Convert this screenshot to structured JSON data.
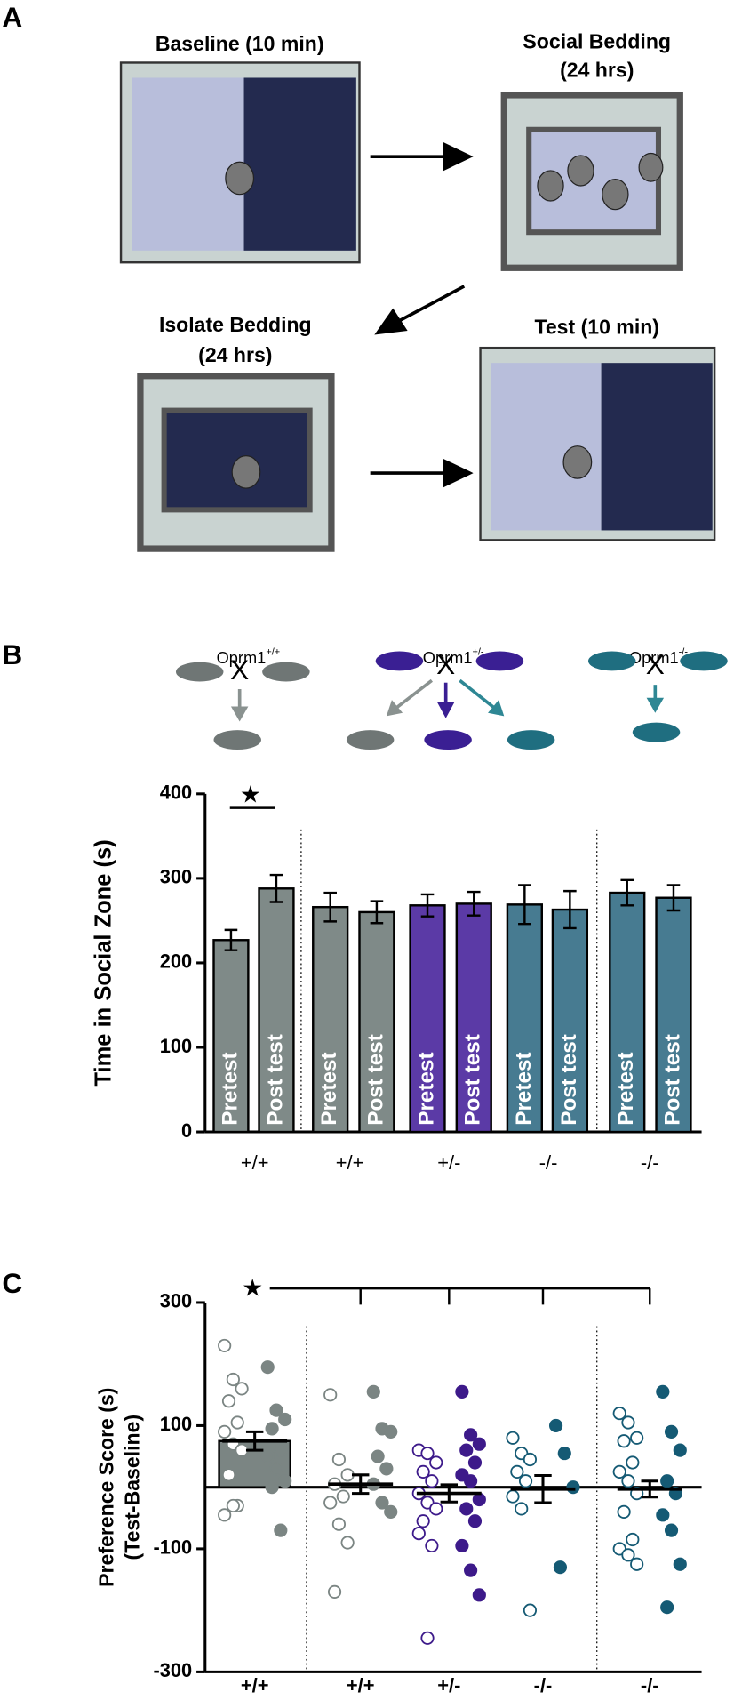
{
  "panels": [
    "A",
    "B",
    "C"
  ],
  "diagram": {
    "baseline": "Baseline (10 min)",
    "social": [
      "Social Bedding",
      "(24 hrs)"
    ],
    "isolate": [
      "Isolate Bedding",
      "(24 hrs)"
    ],
    "test": "Test (10 min)",
    "crosses": [
      {
        "name": "Oprm1",
        "sup": "+/+"
      },
      {
        "name": "Oprm1",
        "sup": "+/-"
      },
      {
        "name": "Oprm1",
        "sup": "-/-"
      }
    ],
    "cross_mark": "X"
  },
  "chart_data": [
    {
      "type": "bar",
      "ylabel": "Time in Social Zone (s)",
      "ylim": [
        0,
        400
      ],
      "yticks": [
        0,
        100,
        200,
        300,
        400
      ],
      "bar_labels": [
        "Pretest",
        "Post test",
        "Pretest",
        "Post test",
        "Pretest",
        "Post test",
        "Pretest",
        "Post test",
        "Pretest",
        "Post test"
      ],
      "groups": [
        "+/+",
        "+/+",
        "+/-",
        "-/-",
        "-/-"
      ],
      "values": [
        227,
        288,
        266,
        260,
        268,
        270,
        269,
        263,
        283,
        277
      ],
      "errors": [
        12,
        16,
        17,
        13,
        13,
        14,
        23,
        22,
        15,
        15
      ],
      "colors": [
        "#7f8a88",
        "#7f8a88",
        "#7f8a88",
        "#7f8a88",
        "#5b3aa6",
        "#5b3aa6",
        "#477b91",
        "#477b91",
        "#477b91",
        "#477b91"
      ],
      "annotation": "★"
    },
    {
      "type": "dot",
      "ylabel": [
        "Preference Score (s)",
        "(Test-Baseline)"
      ],
      "ylim": [
        -300,
        300
      ],
      "yticks": [
        -300,
        -100,
        100,
        300
      ],
      "categories": [
        "+/+",
        "+/+",
        "+/-",
        "-/-",
        "-/-"
      ],
      "colors": [
        "#7b8583",
        "#7b8583",
        "#3d1a8a",
        "#155a74",
        "#155a74"
      ],
      "open_values": [
        [
          230,
          175,
          160,
          140,
          105,
          90,
          70,
          60,
          20,
          -30,
          -45,
          -30
        ],
        [
          150,
          45,
          20,
          5,
          -15,
          -25,
          -60,
          -90,
          -170
        ],
        [
          60,
          55,
          40,
          25,
          10,
          -10,
          -25,
          -35,
          -55,
          -95,
          -75,
          -245
        ],
        [
          80,
          55,
          45,
          25,
          10,
          -15,
          -35,
          -200
        ],
        [
          120,
          105,
          80,
          75,
          40,
          25,
          10,
          -10,
          -40,
          -85,
          -100,
          -110,
          -125
        ]
      ],
      "filled_values": [
        [
          195,
          125,
          110,
          95,
          60,
          50,
          30,
          10,
          0,
          -70
        ],
        [
          155,
          95,
          90,
          50,
          30,
          5,
          -25,
          -40
        ],
        [
          155,
          85,
          70,
          60,
          40,
          20,
          10,
          -20,
          -35,
          -55,
          -95,
          -135,
          -175
        ],
        [
          100,
          55,
          0,
          -130
        ],
        [
          155,
          90,
          60,
          10,
          -10,
          -45,
          -70,
          -125,
          -195
        ]
      ],
      "means": [
        75,
        5,
        -10,
        -3,
        -3
      ],
      "errors": [
        15,
        15,
        14,
        22,
        13
      ],
      "annotation": "★"
    }
  ]
}
